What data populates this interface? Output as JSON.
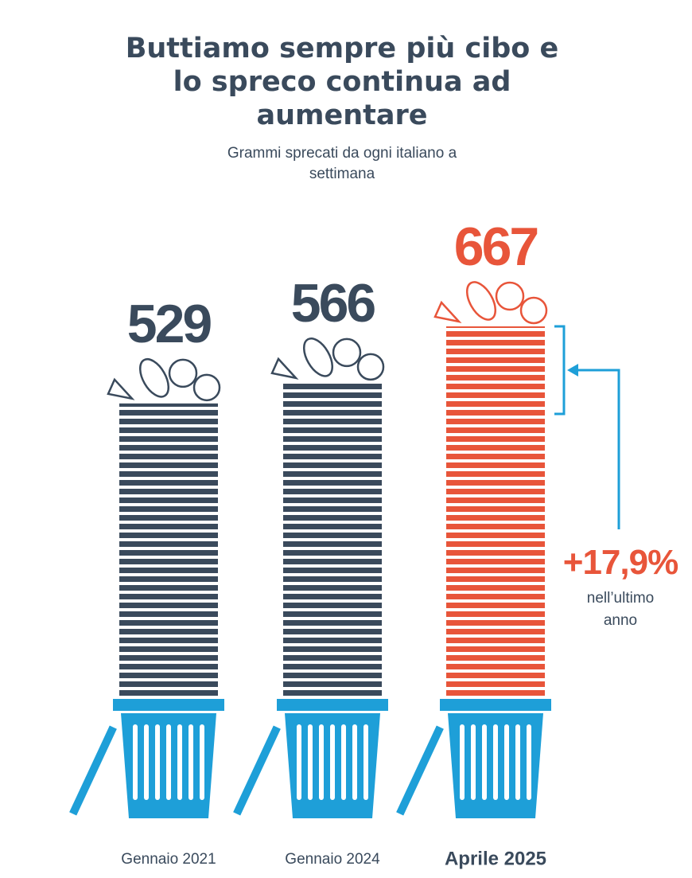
{
  "chart_data": {
    "type": "bar",
    "title": "Buttiamo sempre più cibo e lo spreco continua ad aumentare",
    "subtitle": "Grammi sprecati da ogni italiano a settimana",
    "categories": [
      "Gennaio 2021",
      "Gennaio 2024",
      "Aprile 2025"
    ],
    "values": [
      529,
      566,
      667
    ],
    "colors": [
      "#3a4a5c",
      "#3a4a5c",
      "#e8553a"
    ],
    "annotations": [
      {
        "text": "+17,9%"
      },
      {
        "text": "nell’ultimo anno"
      }
    ]
  }
}
